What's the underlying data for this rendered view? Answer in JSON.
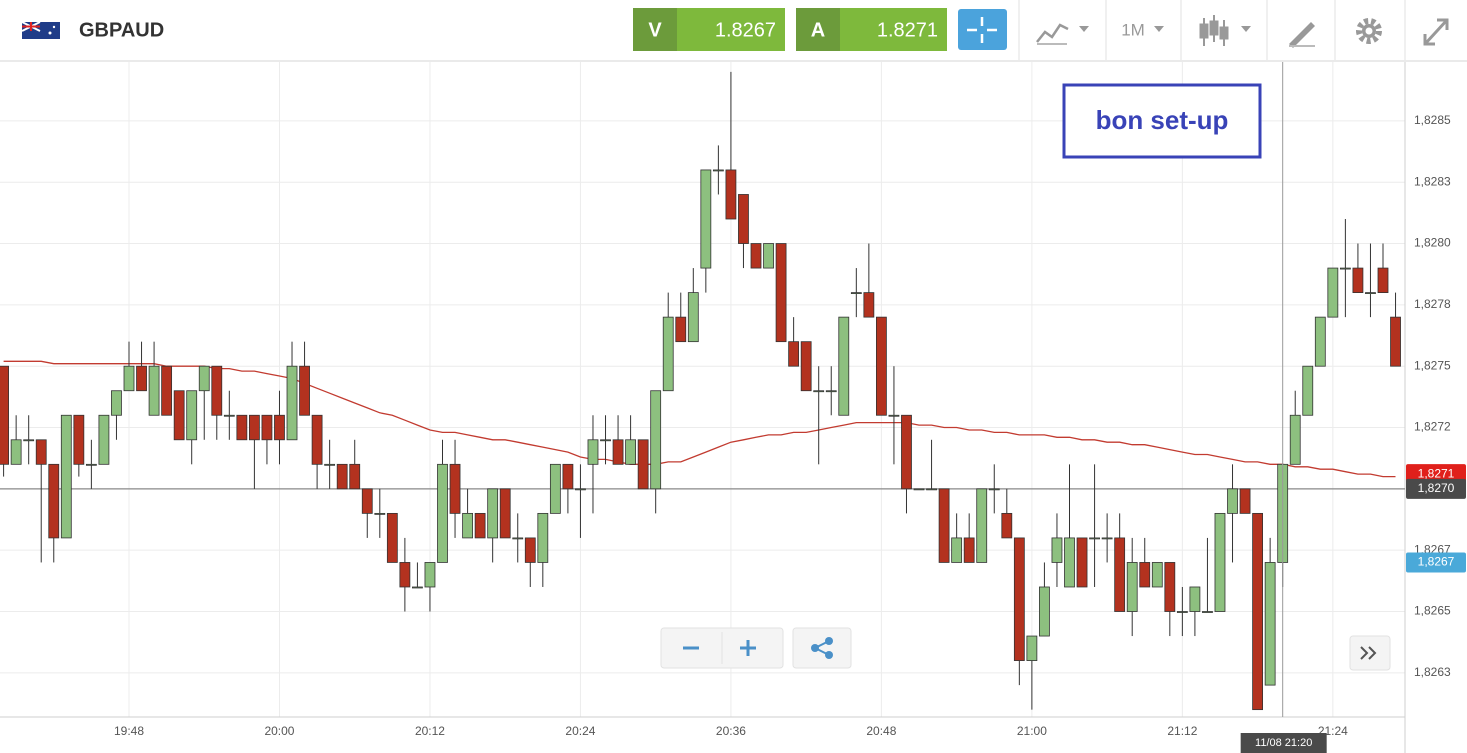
{
  "toolbar": {
    "symbol": "GBPAUD",
    "bid_label": "V",
    "bid": 1.8267,
    "ask_label": "A",
    "ask": 1.8271,
    "timeframe": "1M"
  },
  "chart_data": {
    "type": "candlestick",
    "annotation": "bon set-up",
    "crosshair_label": "11/08 21:20",
    "up_color": "#8dc07f",
    "down_color": "#b3321f",
    "grid": true,
    "categories": [
      "19:38",
      "19:39",
      "19:40",
      "19:41",
      "19:42",
      "19:43",
      "19:44",
      "19:45",
      "19:46",
      "19:47",
      "19:48",
      "19:49",
      "19:50",
      "19:51",
      "19:52",
      "19:53",
      "19:54",
      "19:55",
      "19:56",
      "19:57",
      "19:58",
      "19:59",
      "20:00",
      "20:01",
      "20:02",
      "20:03",
      "20:04",
      "20:05",
      "20:06",
      "20:07",
      "20:08",
      "20:09",
      "20:10",
      "20:11",
      "20:12",
      "20:13",
      "20:14",
      "20:15",
      "20:16",
      "20:17",
      "20:18",
      "20:19",
      "20:20",
      "20:21",
      "20:22",
      "20:23",
      "20:24",
      "20:25",
      "20:26",
      "20:27",
      "20:28",
      "20:29",
      "20:30",
      "20:31",
      "20:32",
      "20:33",
      "20:34",
      "20:35",
      "20:36",
      "20:37",
      "20:38",
      "20:39",
      "20:40",
      "20:41",
      "20:42",
      "20:43",
      "20:44",
      "20:45",
      "20:46",
      "20:47",
      "20:48",
      "20:49",
      "20:50",
      "20:51",
      "20:52",
      "20:53",
      "20:54",
      "20:55",
      "20:56",
      "20:57",
      "20:58",
      "20:59",
      "21:00",
      "21:01",
      "21:02",
      "21:03",
      "21:04",
      "21:05",
      "21:06",
      "21:07",
      "21:08",
      "21:09",
      "21:10",
      "21:11",
      "21:12",
      "21:13",
      "21:14",
      "21:15",
      "21:16",
      "21:17",
      "21:18",
      "21:19",
      "21:20",
      "21:21",
      "21:22",
      "21:23",
      "21:24",
      "21:25",
      "21:26",
      "21:27",
      "21:28",
      "21:29"
    ],
    "open": [
      1.8275,
      1.8271,
      1.8272,
      1.8272,
      1.8271,
      1.8268,
      1.8273,
      1.8271,
      1.8271,
      1.8273,
      1.8274,
      1.8275,
      1.8273,
      1.8275,
      1.8274,
      1.8272,
      1.8274,
      1.8275,
      1.8273,
      1.8273,
      1.8273,
      1.8273,
      1.8273,
      1.8272,
      1.8275,
      1.8273,
      1.8271,
      1.8271,
      1.8271,
      1.827,
      1.8269,
      1.8269,
      1.8267,
      1.8266,
      1.8266,
      1.8267,
      1.8271,
      1.8268,
      1.8269,
      1.8268,
      1.827,
      1.8268,
      1.8268,
      1.8267,
      1.8269,
      1.8271,
      1.827,
      1.8271,
      1.8272,
      1.8272,
      1.8271,
      1.8272,
      1.827,
      1.8274,
      1.8277,
      1.8276,
      1.8279,
      1.8283,
      1.8283,
      1.8282,
      1.828,
      1.8279,
      1.828,
      1.8276,
      1.8276,
      1.8274,
      1.8274,
      1.8273,
      1.8278,
      1.8278,
      1.8277,
      1.8273,
      1.8273,
      1.827,
      1.827,
      1.827,
      1.8267,
      1.8268,
      1.8267,
      1.827,
      1.8269,
      1.8268,
      1.8263,
      1.8264,
      1.8267,
      1.8266,
      1.8268,
      1.8268,
      1.8268,
      1.8268,
      1.8265,
      1.8267,
      1.8266,
      1.8267,
      1.8265,
      1.8265,
      1.8265,
      1.8265,
      1.8269,
      1.827,
      1.8269,
      1.8262,
      1.8267,
      1.8271,
      1.8273,
      1.8275,
      1.8277,
      1.8279,
      1.8279,
      1.8278,
      1.8279,
      1.8277
    ],
    "high": [
      1.8275,
      1.8273,
      1.8273,
      1.8272,
      1.8271,
      1.8273,
      1.8273,
      1.8272,
      1.8273,
      1.8274,
      1.8276,
      1.8276,
      1.8276,
      1.8275,
      1.8274,
      1.8274,
      1.8275,
      1.8275,
      1.8274,
      1.8273,
      1.8273,
      1.8273,
      1.8274,
      1.8276,
      1.8276,
      1.8273,
      1.8272,
      1.8271,
      1.8272,
      1.827,
      1.827,
      1.8269,
      1.8268,
      1.8267,
      1.8267,
      1.8272,
      1.8272,
      1.827,
      1.8269,
      1.827,
      1.827,
      1.8269,
      1.8268,
      1.8269,
      1.8271,
      1.8271,
      1.8271,
      1.8273,
      1.8273,
      1.8273,
      1.8273,
      1.8272,
      1.8274,
      1.8278,
      1.8278,
      1.8279,
      1.8283,
      1.8284,
      1.8287,
      1.8282,
      1.828,
      1.828,
      1.828,
      1.8277,
      1.8276,
      1.8275,
      1.8275,
      1.8277,
      1.8279,
      1.828,
      1.8277,
      1.8275,
      1.8273,
      1.827,
      1.8272,
      1.827,
      1.8269,
      1.8269,
      1.827,
      1.8271,
      1.827,
      1.8268,
      1.8264,
      1.8267,
      1.8269,
      1.8271,
      1.8268,
      1.8271,
      1.8269,
      1.8269,
      1.8268,
      1.8268,
      1.8267,
      1.8267,
      1.8266,
      1.8266,
      1.8268,
      1.8269,
      1.8271,
      1.827,
      1.8269,
      1.8268,
      1.8271,
      1.8274,
      1.8275,
      1.8277,
      1.8279,
      1.8281,
      1.828,
      1.828,
      1.828,
      1.8278
    ],
    "low": [
      1.82705,
      1.8271,
      1.8271,
      1.8267,
      1.8267,
      1.8268,
      1.82705,
      1.827,
      1.8271,
      1.8272,
      1.8274,
      1.8274,
      1.8273,
      1.8273,
      1.8272,
      1.8271,
      1.8272,
      1.8272,
      1.8272,
      1.8272,
      1.827,
      1.8271,
      1.8271,
      1.8272,
      1.8273,
      1.827,
      1.827,
      1.827,
      1.827,
      1.8268,
      1.8268,
      1.8267,
      1.8265,
      1.8266,
      1.8265,
      1.8267,
      1.8268,
      1.8268,
      1.8268,
      1.8267,
      1.8268,
      1.8267,
      1.8266,
      1.8266,
      1.8269,
      1.8269,
      1.8268,
      1.8269,
      1.8271,
      1.8271,
      1.8271,
      1.827,
      1.8269,
      1.8274,
      1.8276,
      1.8276,
      1.8278,
      1.8282,
      1.8281,
      1.8279,
      1.8279,
      1.8279,
      1.8276,
      1.8275,
      1.8274,
      1.8271,
      1.8273,
      1.8273,
      1.8277,
      1.8277,
      1.8273,
      1.8271,
      1.8269,
      1.827,
      1.827,
      1.8267,
      1.8267,
      1.8267,
      1.8267,
      1.8269,
      1.8268,
      1.8262,
      1.8261,
      1.8264,
      1.8266,
      1.8266,
      1.8266,
      1.8266,
      1.8267,
      1.8265,
      1.8264,
      1.8266,
      1.8266,
      1.8264,
      1.8264,
      1.8264,
      1.8265,
      1.8265,
      1.8267,
      1.8269,
      1.8261,
      1.8262,
      1.8266,
      1.8271,
      1.8273,
      1.8275,
      1.8277,
      1.8277,
      1.8278,
      1.8277,
      1.8278,
      1.8275
    ],
    "close": [
      1.8271,
      1.8272,
      1.8272,
      1.8271,
      1.8268,
      1.8273,
      1.8271,
      1.8271,
      1.8273,
      1.8274,
      1.8275,
      1.8274,
      1.8275,
      1.8273,
      1.8272,
      1.8274,
      1.8275,
      1.8273,
      1.8273,
      1.8272,
      1.8272,
      1.8272,
      1.8272,
      1.8275,
      1.8273,
      1.8271,
      1.8271,
      1.827,
      1.827,
      1.8269,
      1.8269,
      1.8267,
      1.8266,
      1.8266,
      1.8267,
      1.8271,
      1.8269,
      1.8269,
      1.8268,
      1.827,
      1.8268,
      1.8268,
      1.8267,
      1.8269,
      1.8271,
      1.827,
      1.827,
      1.8272,
      1.8272,
      1.8271,
      1.8272,
      1.827,
      1.8274,
      1.8277,
      1.8276,
      1.8278,
      1.8283,
      1.8283,
      1.8281,
      1.828,
      1.8279,
      1.828,
      1.8276,
      1.8275,
      1.8274,
      1.8274,
      1.8274,
      1.8277,
      1.8278,
      1.8277,
      1.8273,
      1.8273,
      1.827,
      1.827,
      1.827,
      1.8267,
      1.8268,
      1.8267,
      1.827,
      1.827,
      1.8268,
      1.8263,
      1.8264,
      1.8266,
      1.8268,
      1.8268,
      1.8266,
      1.8268,
      1.8268,
      1.8265,
      1.8267,
      1.8266,
      1.8267,
      1.8265,
      1.8265,
      1.8266,
      1.8265,
      1.8269,
      1.827,
      1.8269,
      1.8261,
      1.8267,
      1.8271,
      1.8273,
      1.8275,
      1.8277,
      1.8279,
      1.8279,
      1.8278,
      1.8278,
      1.8278,
      1.8275
    ],
    "overlay": {
      "color": "#c23b30",
      "values": [
        1.82752,
        1.82752,
        1.82752,
        1.82752,
        1.82751,
        1.82751,
        1.82751,
        1.82751,
        1.82751,
        1.82751,
        1.82751,
        1.82751,
        1.82751,
        1.8275,
        1.8275,
        1.8275,
        1.8275,
        1.82749,
        1.82749,
        1.82748,
        1.82748,
        1.82747,
        1.82746,
        1.82745,
        1.82743,
        1.82741,
        1.82739,
        1.82737,
        1.82735,
        1.82733,
        1.82731,
        1.8273,
        1.82728,
        1.82726,
        1.82724,
        1.82723,
        1.82723,
        1.82722,
        1.82721,
        1.8272,
        1.8272,
        1.82719,
        1.82718,
        1.82717,
        1.82716,
        1.82715,
        1.82713,
        1.82712,
        1.82712,
        1.82711,
        1.8271,
        1.8271,
        1.8271,
        1.82711,
        1.82711,
        1.82713,
        1.82715,
        1.82717,
        1.82719,
        1.8272,
        1.82721,
        1.82722,
        1.82722,
        1.82723,
        1.82723,
        1.82724,
        1.82725,
        1.82726,
        1.82727,
        1.82727,
        1.82727,
        1.82727,
        1.82727,
        1.82726,
        1.82726,
        1.82725,
        1.82725,
        1.82724,
        1.82724,
        1.82723,
        1.82723,
        1.82722,
        1.82722,
        1.82722,
        1.82721,
        1.82721,
        1.8272,
        1.8272,
        1.82719,
        1.82719,
        1.82718,
        1.82718,
        1.82717,
        1.82716,
        1.82715,
        1.82714,
        1.82714,
        1.82713,
        1.82712,
        1.82711,
        1.82711,
        1.8271,
        1.8271,
        1.82709,
        1.82709,
        1.82708,
        1.82708,
        1.82707,
        1.82706,
        1.82706,
        1.82705,
        1.82705
      ]
    },
    "ylim": [
      1.82607,
      1.82874
    ],
    "yticks": [
      {
        "value": 1.82625,
        "label": "1,8263"
      },
      {
        "value": 1.8265,
        "label": "1,8265"
      },
      {
        "value": 1.82675,
        "label": "1,8267"
      },
      {
        "value": 1.827,
        "label": "1,8270"
      },
      {
        "value": 1.82725,
        "label": "1,8272"
      },
      {
        "value": 1.8275,
        "label": "1,8275"
      },
      {
        "value": 1.82775,
        "label": "1,8278"
      },
      {
        "value": 1.828,
        "label": "1,8280"
      },
      {
        "value": 1.82825,
        "label": "1,8283"
      },
      {
        "value": 1.8285,
        "label": "1,8285"
      }
    ],
    "xticks": [
      "19:48",
      "20:00",
      "20:12",
      "20:24",
      "20:36",
      "20:48",
      "21:00",
      "21:12",
      "21:24"
    ],
    "price_tags": [
      {
        "value": 1.82706,
        "label": "1,8271",
        "color": "#e0201b",
        "line": false
      },
      {
        "value": 1.827,
        "label": "1,8270",
        "color": "#4a4a4a",
        "line": true
      },
      {
        "value": 1.8267,
        "label": "1,8267",
        "color": "#4aa9d9",
        "line": false
      }
    ]
  }
}
